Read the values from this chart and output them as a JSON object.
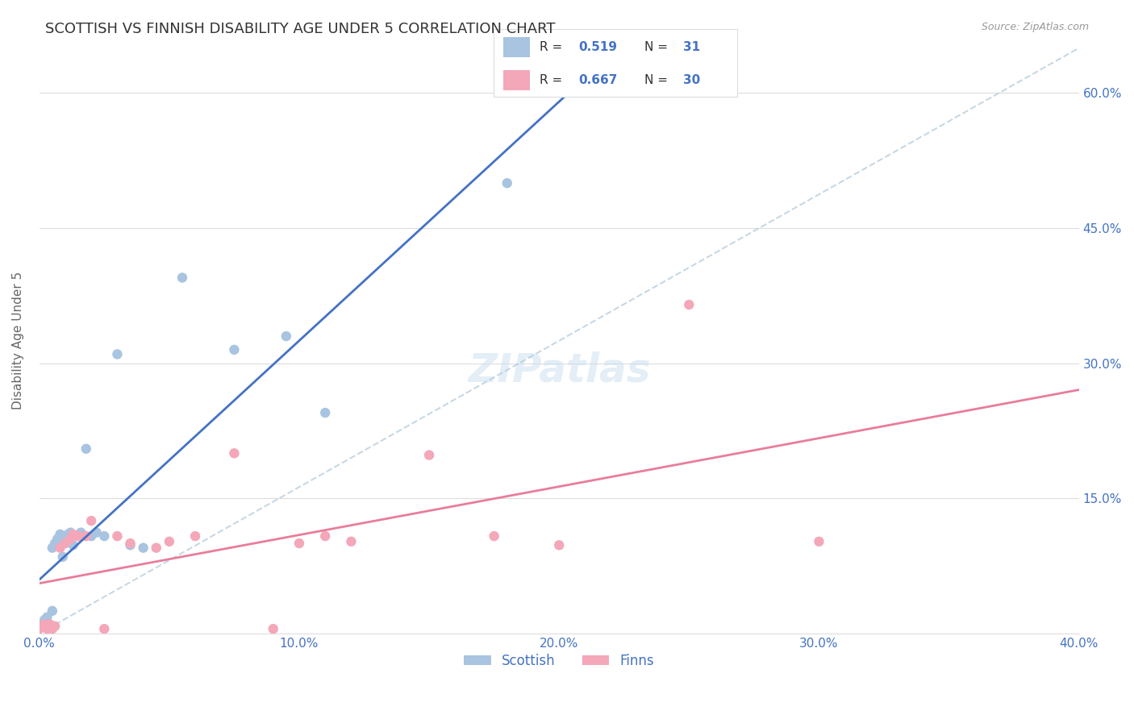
{
  "title": "SCOTTISH VS FINNISH DISABILITY AGE UNDER 5 CORRELATION CHART",
  "source": "Source: ZipAtlas.com",
  "ylabel": "Disability Age Under 5",
  "xlim": [
    0.0,
    0.4
  ],
  "ylim": [
    0.0,
    0.65
  ],
  "xtick_labels": [
    "0.0%",
    "10.0%",
    "20.0%",
    "30.0%",
    "40.0%"
  ],
  "xtick_values": [
    0.0,
    0.1,
    0.2,
    0.3,
    0.4
  ],
  "ytick_labels": [
    "15.0%",
    "30.0%",
    "45.0%",
    "60.0%"
  ],
  "ytick_values": [
    0.15,
    0.3,
    0.45,
    0.6
  ],
  "scottish_color": "#a8c4e0",
  "finns_color": "#f4a7b9",
  "scottish_line_color": "#4472c4",
  "finns_line_color": "#e87d9b",
  "dashed_line_color": "#b0c8d8",
  "legend_text_color": "#4472c4",
  "title_color": "#333333",
  "background_color": "#ffffff",
  "grid_color": "#dddddd",
  "R_scottish": 0.519,
  "N_scottish": 31,
  "R_finns": 0.667,
  "N_finns": 30,
  "sx": [
    0.0,
    0.001,
    0.002,
    0.002,
    0.003,
    0.003,
    0.004,
    0.005,
    0.005,
    0.006,
    0.007,
    0.008,
    0.009,
    0.01,
    0.011,
    0.012,
    0.013,
    0.015,
    0.016,
    0.018,
    0.02,
    0.022,
    0.025,
    0.03,
    0.035,
    0.04,
    0.055,
    0.075,
    0.095,
    0.11,
    0.18
  ],
  "sy": [
    0.008,
    0.01,
    0.012,
    0.015,
    0.012,
    0.018,
    0.01,
    0.025,
    0.095,
    0.1,
    0.105,
    0.11,
    0.085,
    0.105,
    0.11,
    0.112,
    0.098,
    0.108,
    0.112,
    0.205,
    0.108,
    0.112,
    0.108,
    0.31,
    0.098,
    0.095,
    0.395,
    0.315,
    0.33,
    0.245,
    0.5
  ],
  "fx": [
    0.0,
    0.001,
    0.002,
    0.003,
    0.004,
    0.005,
    0.006,
    0.008,
    0.01,
    0.012,
    0.013,
    0.015,
    0.018,
    0.02,
    0.025,
    0.03,
    0.035,
    0.045,
    0.05,
    0.06,
    0.075,
    0.09,
    0.1,
    0.11,
    0.12,
    0.15,
    0.175,
    0.2,
    0.25,
    0.3
  ],
  "fy": [
    0.005,
    0.008,
    0.01,
    0.005,
    0.01,
    0.005,
    0.008,
    0.095,
    0.1,
    0.105,
    0.11,
    0.108,
    0.108,
    0.125,
    0.005,
    0.108,
    0.1,
    0.095,
    0.102,
    0.108,
    0.2,
    0.005,
    0.1,
    0.108,
    0.102,
    0.198,
    0.108,
    0.098,
    0.365,
    0.102
  ]
}
